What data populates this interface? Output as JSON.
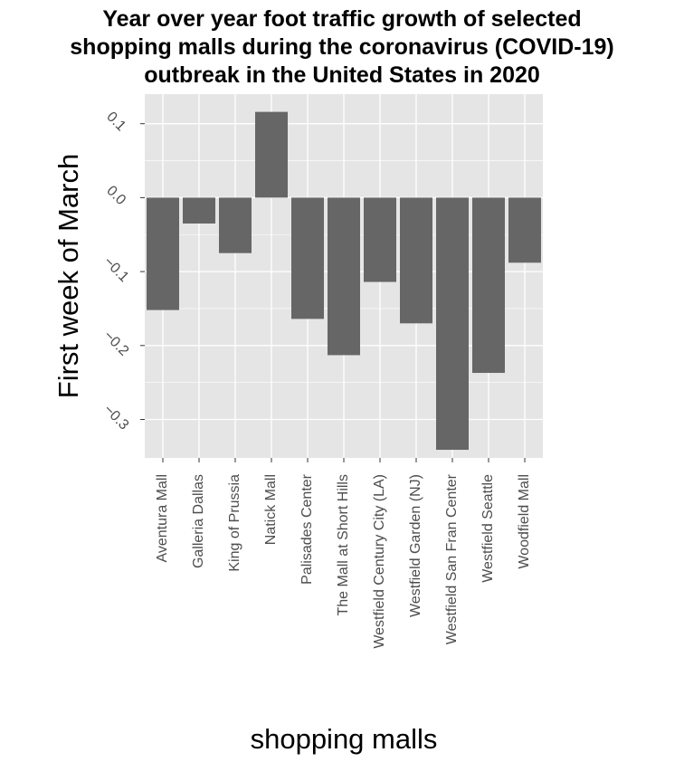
{
  "chart_data": {
    "type": "bar",
    "title_lines": [
      "Year over year foot traffic growth of selected",
      "shopping malls during the coronavirus (COVID-19)",
      "outbreak in the United States in 2020"
    ],
    "xlabel": "shopping malls",
    "ylabel": "First week of March",
    "categories": [
      "Aventura Mall",
      "Galleria Dallas",
      "King of Prussia",
      "Natick Mall",
      "Palisades Center",
      "The Mall at Short Hills",
      "Westfield Century City (LA)",
      "Westfield Garden (NJ)",
      "Westfield San Fran Center",
      "Westfield Seattle",
      "Woodfield Mall"
    ],
    "values": [
      -0.152,
      -0.035,
      -0.075,
      0.116,
      -0.164,
      -0.213,
      -0.114,
      -0.17,
      -0.341,
      -0.237,
      -0.088
    ],
    "ylim": [
      -0.352,
      0.14
    ],
    "yticks": [
      0.1,
      0.0,
      -0.1,
      -0.2,
      -0.3
    ],
    "ytick_labels": [
      "0.1",
      "0.0",
      "−0.1",
      "−0.2",
      "−0.3"
    ],
    "grid": true,
    "colors": {
      "panel": "#e5e5e5",
      "grid": "#ffffff",
      "bar": "#666666",
      "tick_text": "#4d4d4d"
    }
  }
}
